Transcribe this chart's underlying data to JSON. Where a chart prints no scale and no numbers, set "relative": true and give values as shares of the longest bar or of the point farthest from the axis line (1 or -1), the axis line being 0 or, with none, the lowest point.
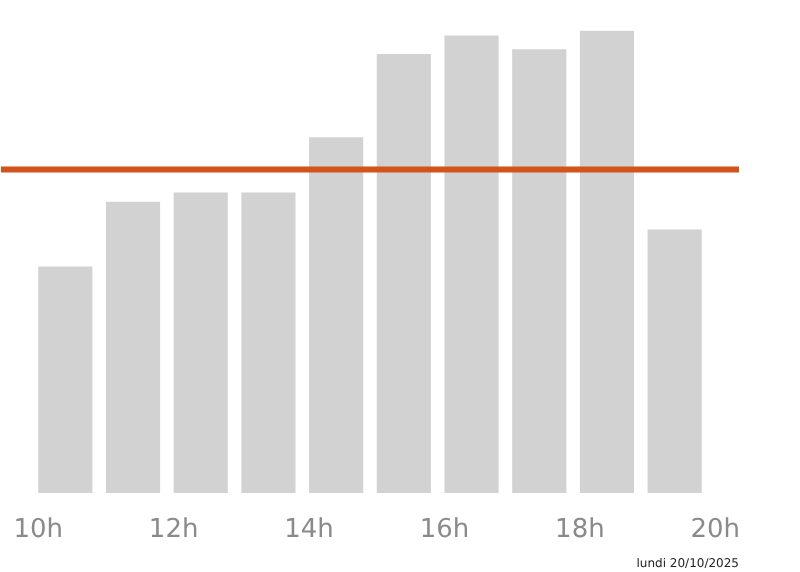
{
  "chart_data": {
    "type": "bar",
    "relative": true,
    "x": [
      10.4,
      11.4,
      12.4,
      13.4,
      14.4,
      15.4,
      16.4,
      17.4,
      18.4,
      19.4
    ],
    "values": [
      0.49,
      0.63,
      0.65,
      0.65,
      0.77,
      0.95,
      0.99,
      0.96,
      1,
      0.57
    ],
    "color": "#d3d2d3",
    "xlim": [
      9.45,
      20.35
    ],
    "xticks": [
      {
        "value": 10,
        "label": "10h"
      },
      {
        "value": 12,
        "label": "12h"
      },
      {
        "value": 14,
        "label": "14h"
      },
      {
        "value": 16,
        "label": "16h"
      },
      {
        "value": 18,
        "label": "18h"
      },
      {
        "value": 20,
        "label": "20h"
      }
    ],
    "ref_lines": [
      {
        "axis": "y",
        "value": 0.7,
        "label": null,
        "color": "#d2541c"
      }
    ],
    "grid": false,
    "annotations": [
      "lundi 20/10/2025"
    ]
  }
}
